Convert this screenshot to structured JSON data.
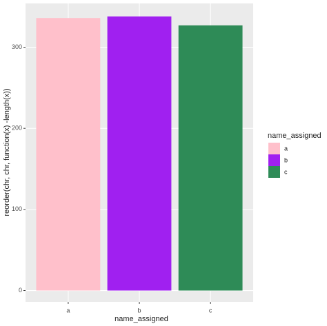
{
  "chart_data": {
    "type": "bar",
    "x_label": "name_assigned",
    "y_label": "reorder(chr, chr, function(x) -length(x))",
    "categories": [
      "a",
      "b",
      "c"
    ],
    "series": [
      {
        "name": "a",
        "color": "#FFC0CB"
      },
      {
        "name": "b",
        "color": "#A020F0"
      },
      {
        "name": "c",
        "color": "#2E8B57"
      }
    ],
    "values": [
      336,
      338,
      327
    ],
    "legend_title": "name_assigned",
    "legend_position": "right",
    "ylim": [
      -14,
      354
    ],
    "yticks": [
      0,
      100,
      200,
      300
    ],
    "grid": true
  }
}
